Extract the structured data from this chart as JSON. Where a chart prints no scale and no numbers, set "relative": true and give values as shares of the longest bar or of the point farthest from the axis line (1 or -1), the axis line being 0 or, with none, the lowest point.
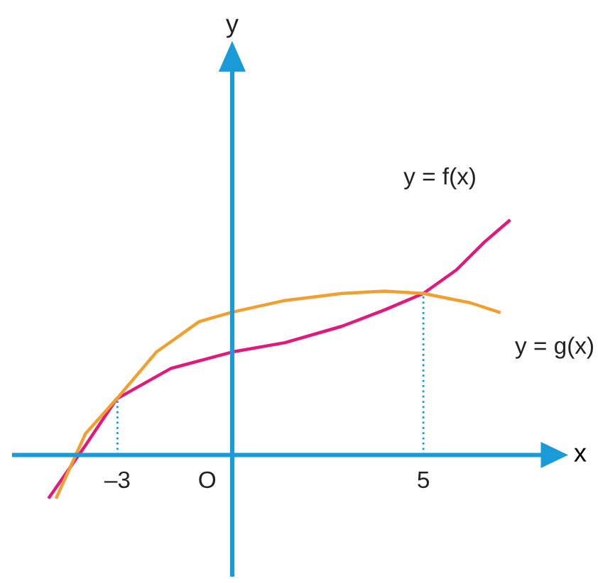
{
  "chart_data": {
    "type": "line",
    "relative": true,
    "xlabel": "x",
    "xlim": [
      -5.7,
      8.6
    ],
    "xticks": [
      {
        "value": -3,
        "label": "–3"
      },
      5
    ],
    "annotations": [
      "O",
      "y"
    ],
    "grid": false,
    "legend": false,
    "marker": "none",
    "line_style": "solid",
    "series": [
      {
        "name": "y = f(x)",
        "color": "#e0197a",
        "x": [
          -4.78,
          -3.84,
          -3.02,
          -1.6,
          0,
          1.38,
          2.87,
          3.99,
          5,
          5.86,
          6.6,
          7.24
        ],
        "values": [
          -0.18,
          0.04,
          0.24,
          0.37,
          0.44,
          0.48,
          0.55,
          0.62,
          0.69,
          0.79,
          0.91,
          1.0
        ]
      },
      {
        "name": "y = g(x)",
        "color": "#f0a030",
        "x": [
          -4.59,
          -3.84,
          -3.02,
          -1.98,
          -0.86,
          0,
          1.38,
          2.87,
          3.99,
          5,
          6.23,
          6.98
        ],
        "values": [
          -0.18,
          0.09,
          0.24,
          0.44,
          0.57,
          0.61,
          0.66,
          0.69,
          0.7,
          0.69,
          0.65,
          0.61
        ]
      }
    ],
    "ref_lines": [
      {
        "axis": "x",
        "value": 0,
        "color": "#1a9ad6",
        "line_style": "solid"
      },
      {
        "axis": "x",
        "value": -3,
        "color": "#1a9ad6",
        "line_style": "dotted"
      },
      {
        "axis": "x",
        "value": 5,
        "color": "#1a9ad6",
        "line_style": "dotted"
      }
    ]
  }
}
